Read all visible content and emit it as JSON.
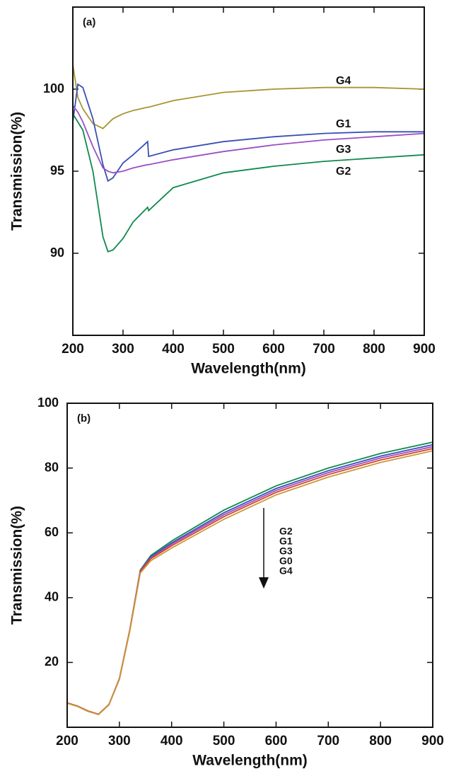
{
  "chart_data": [
    {
      "type": "line",
      "panel_label": "(a)",
      "x_label": "Wavelength(nm)",
      "y_label": "Transmission(%)",
      "x": [
        200,
        210,
        220,
        240,
        260,
        270,
        280,
        300,
        320,
        349,
        351,
        400,
        500,
        600,
        700,
        800,
        900
      ],
      "series": [
        {
          "name": "G4",
          "color": "#a8952f",
          "values": [
            101.5,
            99.5,
            98.8,
            97.9,
            97.6,
            97.9,
            98.2,
            98.5,
            98.7,
            98.9,
            98.9,
            99.3,
            99.8,
            100.0,
            100.1,
            100.1,
            100.0
          ]
        },
        {
          "name": "G1",
          "color": "#3a4fb4",
          "values": [
            98.0,
            100.3,
            100.1,
            98.2,
            95.4,
            94.4,
            94.6,
            95.5,
            96.0,
            96.8,
            95.9,
            96.3,
            96.8,
            97.1,
            97.3,
            97.4,
            97.4
          ]
        },
        {
          "name": "G3",
          "color": "#9a4fc4",
          "values": [
            99.0,
            98.6,
            98.0,
            96.5,
            95.2,
            95.0,
            94.9,
            95.0,
            95.2,
            95.4,
            95.4,
            95.7,
            96.2,
            96.6,
            96.9,
            97.1,
            97.3
          ]
        },
        {
          "name": "G2",
          "color": "#0e8a4c",
          "values": [
            98.5,
            98.0,
            97.5,
            95.0,
            91.0,
            90.1,
            90.2,
            90.9,
            91.9,
            92.8,
            92.6,
            94.0,
            94.9,
            95.3,
            95.6,
            95.8,
            96.0
          ]
        }
      ],
      "xlim": [
        200,
        900
      ],
      "xticks": [
        200,
        300,
        400,
        500,
        600,
        700,
        800,
        900
      ],
      "ylim": [
        85,
        105
      ],
      "yticks": [
        90,
        95,
        100
      ]
    },
    {
      "type": "line",
      "panel_label": "(b)",
      "x_label": "Wavelength(nm)",
      "y_label": "Transmission(%)",
      "x": [
        200,
        220,
        240,
        260,
        280,
        300,
        320,
        340,
        360,
        400,
        500,
        600,
        700,
        800,
        900
      ],
      "series": [
        {
          "name": "G2",
          "color": "#0e8a4c",
          "values": [
            7.5,
            6.5,
            5,
            4,
            7,
            15,
            30,
            48.5,
            53,
            57.5,
            67,
            74.5,
            80,
            84.5,
            88
          ]
        },
        {
          "name": "G1",
          "color": "#3a4fb4",
          "values": [
            7.5,
            6.5,
            5,
            4,
            7,
            15,
            30,
            48.3,
            52.6,
            56.9,
            66.2,
            73.7,
            79.2,
            83.7,
            87.2
          ]
        },
        {
          "name": "G3",
          "color": "#9a4fc4",
          "values": [
            7.5,
            6.5,
            5,
            4,
            7,
            15,
            30,
            48.2,
            52.3,
            56.5,
            65.6,
            73.1,
            78.6,
            83.1,
            86.6
          ]
        },
        {
          "name": "G0",
          "color": "#d8402c",
          "values": [
            7.5,
            6.5,
            5,
            4,
            7,
            15,
            30,
            48,
            52,
            56,
            65,
            72.5,
            78,
            82.5,
            86
          ]
        },
        {
          "name": "G4",
          "color": "#c99a3a",
          "values": [
            7.4,
            6.4,
            4.9,
            3.9,
            6.9,
            14.8,
            29.7,
            47.6,
            51.4,
            55.3,
            64.2,
            71.7,
            77.2,
            81.7,
            85.3
          ]
        }
      ],
      "xlim": [
        200,
        900
      ],
      "xticks": [
        200,
        300,
        400,
        500,
        600,
        700,
        800,
        900
      ],
      "ylim": [
        0,
        100
      ],
      "yticks": [
        20,
        40,
        60,
        80,
        100
      ]
    }
  ]
}
